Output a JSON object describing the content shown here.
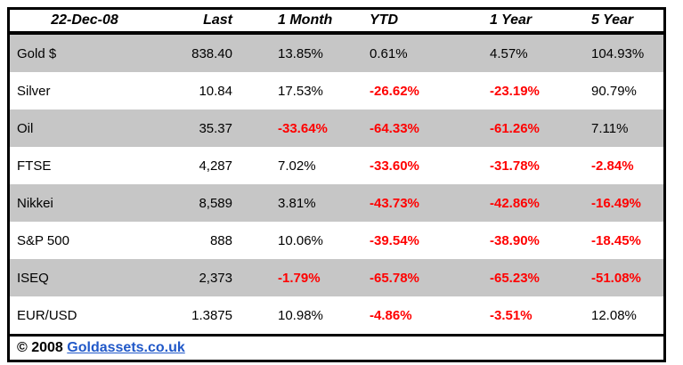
{
  "table": {
    "columns": [
      {
        "key": "name",
        "label": "22-Dec-08"
      },
      {
        "key": "last",
        "label": "Last"
      },
      {
        "key": "m1",
        "label": "1 Month"
      },
      {
        "key": "ytd",
        "label": "YTD"
      },
      {
        "key": "y1",
        "label": "1 Year"
      },
      {
        "key": "y5",
        "label": "5 Year"
      }
    ],
    "rows": [
      {
        "name": "Gold $",
        "values": [
          "838.40",
          "13.85%",
          "0.61%",
          "4.57%",
          "104.93%"
        ]
      },
      {
        "name": "Silver",
        "values": [
          "10.84",
          "17.53%",
          "-26.62%",
          "-23.19%",
          "90.79%"
        ]
      },
      {
        "name": "Oil",
        "values": [
          "35.37",
          "-33.64%",
          "-64.33%",
          "-61.26%",
          "7.11%"
        ]
      },
      {
        "name": "FTSE",
        "values": [
          "4,287",
          "7.02%",
          "-33.60%",
          "-31.78%",
          "-2.84%"
        ]
      },
      {
        "name": "Nikkei",
        "values": [
          "8,589",
          "3.81%",
          "-43.73%",
          "-42.86%",
          "-16.49%"
        ]
      },
      {
        "name": "S&P 500",
        "values": [
          "888",
          "10.06%",
          "-39.54%",
          "-38.90%",
          "-18.45%"
        ]
      },
      {
        "name": "ISEQ",
        "values": [
          "2,373",
          "-1.79%",
          "-65.78%",
          "-65.23%",
          "-51.08%"
        ]
      },
      {
        "name": "EUR/USD",
        "values": [
          "1.3875",
          "10.98%",
          "-4.86%",
          "-3.51%",
          "12.08%"
        ]
      }
    ]
  },
  "footer": {
    "copyright": "© 2008 ",
    "link_label": "Goldassets.co.uk"
  },
  "colors": {
    "row_stripe": "#C6C6C6",
    "negative": "#FF0000",
    "link": "#2058C8",
    "border": "#000000"
  }
}
